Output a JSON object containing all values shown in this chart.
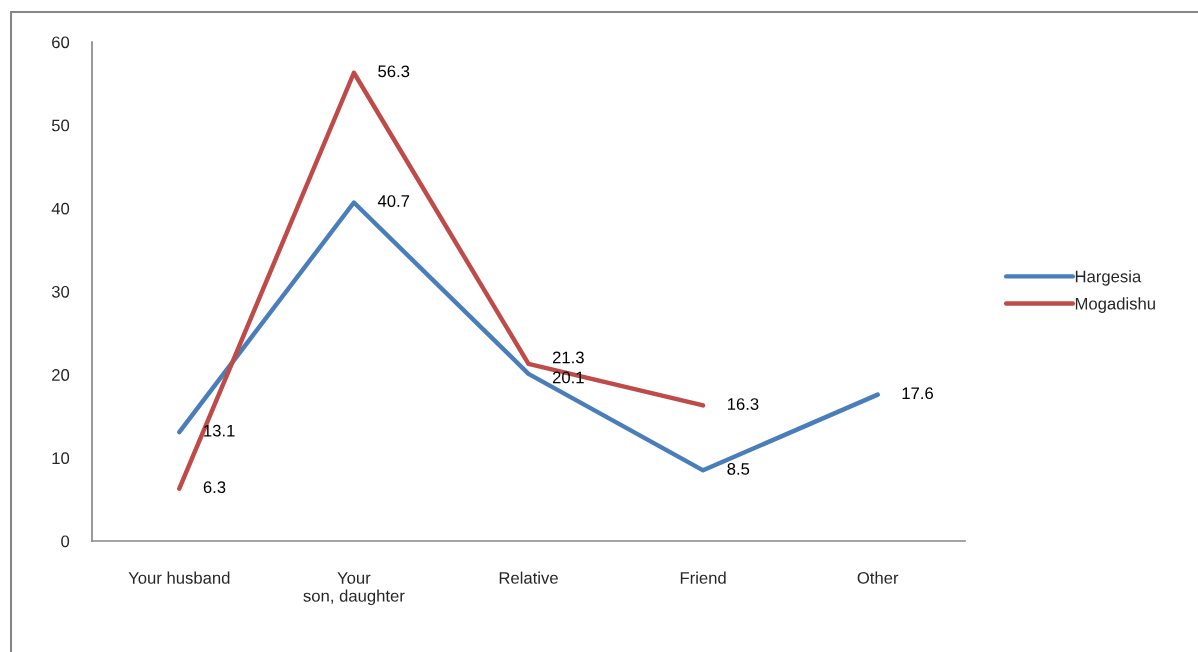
{
  "chart_data": {
    "type": "line",
    "categories": [
      "Your husband",
      "Your\nson, daughter",
      "Relative",
      "Friend",
      "Other"
    ],
    "series": [
      {
        "name": "Hargesia",
        "color": "#4a7ebb",
        "values": [
          13.1,
          40.7,
          20.1,
          8.5,
          17.6
        ]
      },
      {
        "name": "Mogadishu",
        "color": "#be4b48",
        "values": [
          6.3,
          56.3,
          21.3,
          16.3,
          null
        ]
      }
    ],
    "ylim": [
      0,
      60
    ],
    "yticks": [
      0,
      10,
      20,
      30,
      40,
      50,
      60
    ],
    "data_labels": true,
    "legend": "right",
    "grid": false,
    "line_style": "solid"
  }
}
